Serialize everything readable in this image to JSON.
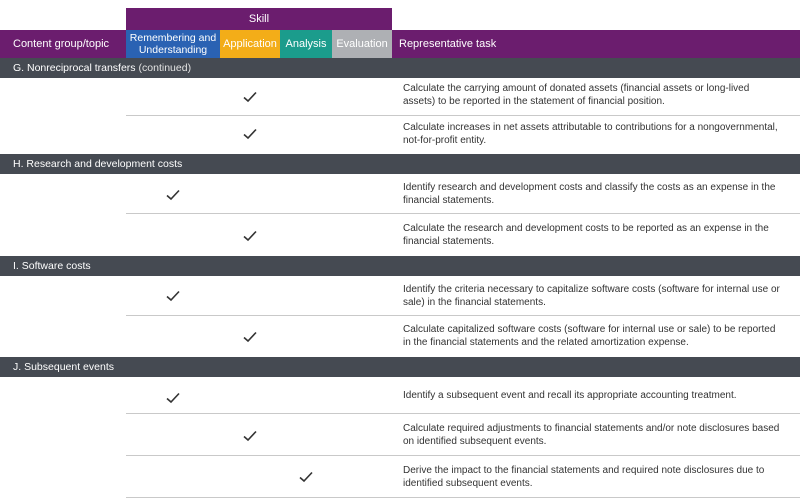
{
  "header": {
    "skill": "Skill",
    "content_group": "Content group/topic",
    "remembering": "Remembering and Understanding",
    "application": "Application",
    "analysis": "Analysis",
    "evaluation": "Evaluation",
    "task": "Representative task"
  },
  "sections": {
    "g": {
      "title": "G. Nonreciprocal transfers",
      "suffix": "(continued)",
      "rows": [
        {
          "skill": "Application",
          "task": "Calculate the carrying amount of donated assets (financial assets or long-lived assets) to be reported in the statement of financial position."
        },
        {
          "skill": "Application",
          "task": "Calculate increases in net assets attributable to contributions for a nongovernmental, not-for-profit entity."
        }
      ]
    },
    "h": {
      "title": "H. Research and development costs",
      "rows": [
        {
          "skill": "Remembering and Understanding",
          "task": "Identify research and development costs and classify the costs as an expense in the financial statements."
        },
        {
          "skill": "Application",
          "task": "Calculate the research and development costs to be reported as an expense in the financial statements."
        }
      ]
    },
    "i": {
      "title": "I. Software costs",
      "rows": [
        {
          "skill": "Remembering and Understanding",
          "task": "Identify the criteria necessary to capitalize software costs (software for internal use or sale) in the financial statements."
        },
        {
          "skill": "Application",
          "task": "Calculate capitalized software costs (software for internal use or sale) to be reported in the financial statements and the related amortization expense."
        }
      ]
    },
    "j": {
      "title": "J. Subsequent events",
      "rows": [
        {
          "skill": "Remembering and Understanding",
          "task": "Identify a subsequent event and recall its appropriate accounting treatment."
        },
        {
          "skill": "Application",
          "task": "Calculate required adjustments to financial statements and/or note disclosures based on identified subsequent events."
        },
        {
          "skill": "Analysis",
          "task": "Derive the impact to the financial statements and required note disclosures due to identified subsequent events."
        }
      ]
    }
  },
  "colors": {
    "header": "#6b1d6e",
    "remembering": "#2a62b3",
    "application": "#f3ad18",
    "analysis": "#1b9c8c",
    "evaluation": "#aeb0b4",
    "section": "#454a52"
  },
  "icons": {
    "check": "checkmark-icon"
  }
}
